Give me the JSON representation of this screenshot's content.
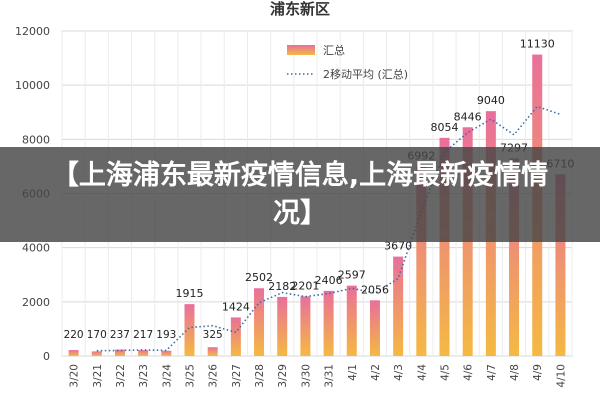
{
  "overlay": {
    "headline": "【上海浦东最新疫情信息,上海最新疫情情况】"
  },
  "chart_data": {
    "type": "bar",
    "title": "浦东新区",
    "categories": [
      "3/20",
      "3/21",
      "3/22",
      "3/23",
      "3/24",
      "3/25",
      "3/26",
      "3/27",
      "3/28",
      "3/29",
      "3/30",
      "3/31",
      "4/1",
      "4/2",
      "4/3",
      "4/4",
      "4/5",
      "4/6",
      "4/7",
      "4/8",
      "4/9",
      "4/10"
    ],
    "data_labels": [
      "220",
      "170",
      "237",
      "217",
      "193",
      "1915",
      "325",
      "1424",
      "2502",
      "2182",
      "2201",
      "2406",
      "2597",
      "2056",
      "3670",
      "6992",
      "8054",
      "8446",
      "9040",
      "7297",
      "11130",
      "6710"
    ],
    "series": [
      {
        "name": "汇总",
        "type": "bar",
        "values": [
          220,
          170,
          237,
          217,
          193,
          1915,
          325,
          1424,
          2502,
          2182,
          2201,
          2406,
          2597,
          2056,
          3670,
          6992,
          8054,
          8446,
          9040,
          7297,
          11130,
          6710
        ]
      },
      {
        "name": "2移动平均 (汇总)",
        "type": "line",
        "style": "dotted",
        "values": [
          null,
          195,
          203.5,
          227,
          205,
          1054,
          1120,
          874.5,
          1963,
          2342,
          2191.5,
          2303.5,
          2501.5,
          2326.5,
          2863,
          5331,
          7523,
          8250,
          8743,
          8168.5,
          9213.5,
          8920
        ]
      }
    ],
    "yticks": [
      "0",
      "2000",
      "4000",
      "6000",
      "8000",
      "10000",
      "12000"
    ],
    "ylim": [
      0,
      12000
    ],
    "legend_position": "top-right",
    "grid": true,
    "colors": {
      "bar_top": "#e96f9b",
      "bar_bottom": "#f5b942",
      "line": "#3a6ea5",
      "grid": "#d9d9d9"
    }
  }
}
